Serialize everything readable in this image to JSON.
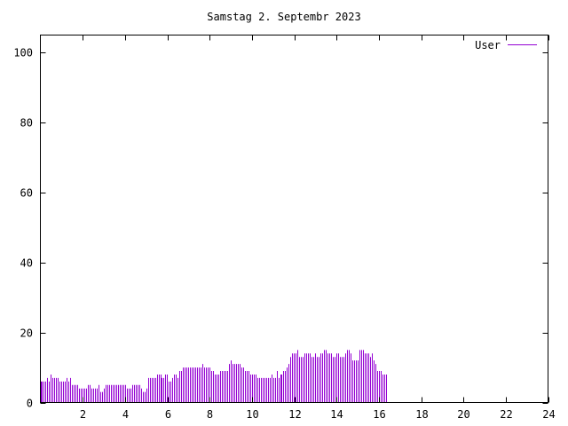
{
  "chart_data": {
    "type": "bar",
    "title": "Samstag 2. Septembr 2023",
    "xlabel": "",
    "ylabel": "",
    "xlim": [
      0,
      24
    ],
    "ylim": [
      0,
      105
    ],
    "xticks": [
      2,
      4,
      6,
      8,
      10,
      12,
      14,
      16,
      18,
      20,
      22,
      24
    ],
    "yticks": [
      0,
      20,
      40,
      60,
      80,
      100
    ],
    "grid": false,
    "legend_position": "top-right",
    "series_color": "#9400d3",
    "series": [
      {
        "name": "User",
        "x_start": 0,
        "x_step": 0.0833,
        "values": [
          6,
          6,
          6,
          6,
          7,
          6,
          8,
          7,
          7,
          7,
          7,
          6,
          6,
          6,
          6,
          7,
          6,
          7,
          5,
          5,
          5,
          5,
          4,
          4,
          4,
          4,
          4,
          5,
          5,
          4,
          4,
          4,
          4,
          5,
          3,
          3,
          4,
          5,
          5,
          5,
          5,
          5,
          5,
          5,
          5,
          5,
          5,
          5,
          5,
          4,
          4,
          4,
          5,
          5,
          5,
          5,
          5,
          4,
          3,
          3,
          4,
          7,
          7,
          7,
          7,
          7,
          8,
          8,
          8,
          7,
          7,
          8,
          8,
          6,
          6,
          7,
          8,
          8,
          7,
          9,
          9,
          10,
          10,
          10,
          10,
          10,
          10,
          10,
          10,
          10,
          10,
          10,
          11,
          10,
          10,
          10,
          10,
          9,
          9,
          8,
          8,
          8,
          9,
          9,
          9,
          9,
          9,
          11,
          12,
          11,
          11,
          11,
          11,
          11,
          10,
          10,
          9,
          9,
          9,
          8,
          8,
          8,
          8,
          7,
          7,
          7,
          7,
          7,
          7,
          7,
          7,
          8,
          7,
          7,
          9,
          7,
          8,
          8,
          9,
          9,
          10,
          11,
          13,
          14,
          14,
          14,
          15,
          13,
          13,
          13,
          14,
          14,
          14,
          14,
          13,
          13,
          14,
          13,
          13,
          14,
          14,
          15,
          15,
          14,
          14,
          14,
          13,
          13,
          14,
          14,
          13,
          13,
          13,
          14,
          15,
          15,
          14,
          12,
          12,
          12,
          12,
          15,
          15,
          15,
          14,
          14,
          14,
          13,
          14,
          12,
          11,
          9,
          9,
          9,
          8,
          8,
          8
        ]
      }
    ]
  }
}
